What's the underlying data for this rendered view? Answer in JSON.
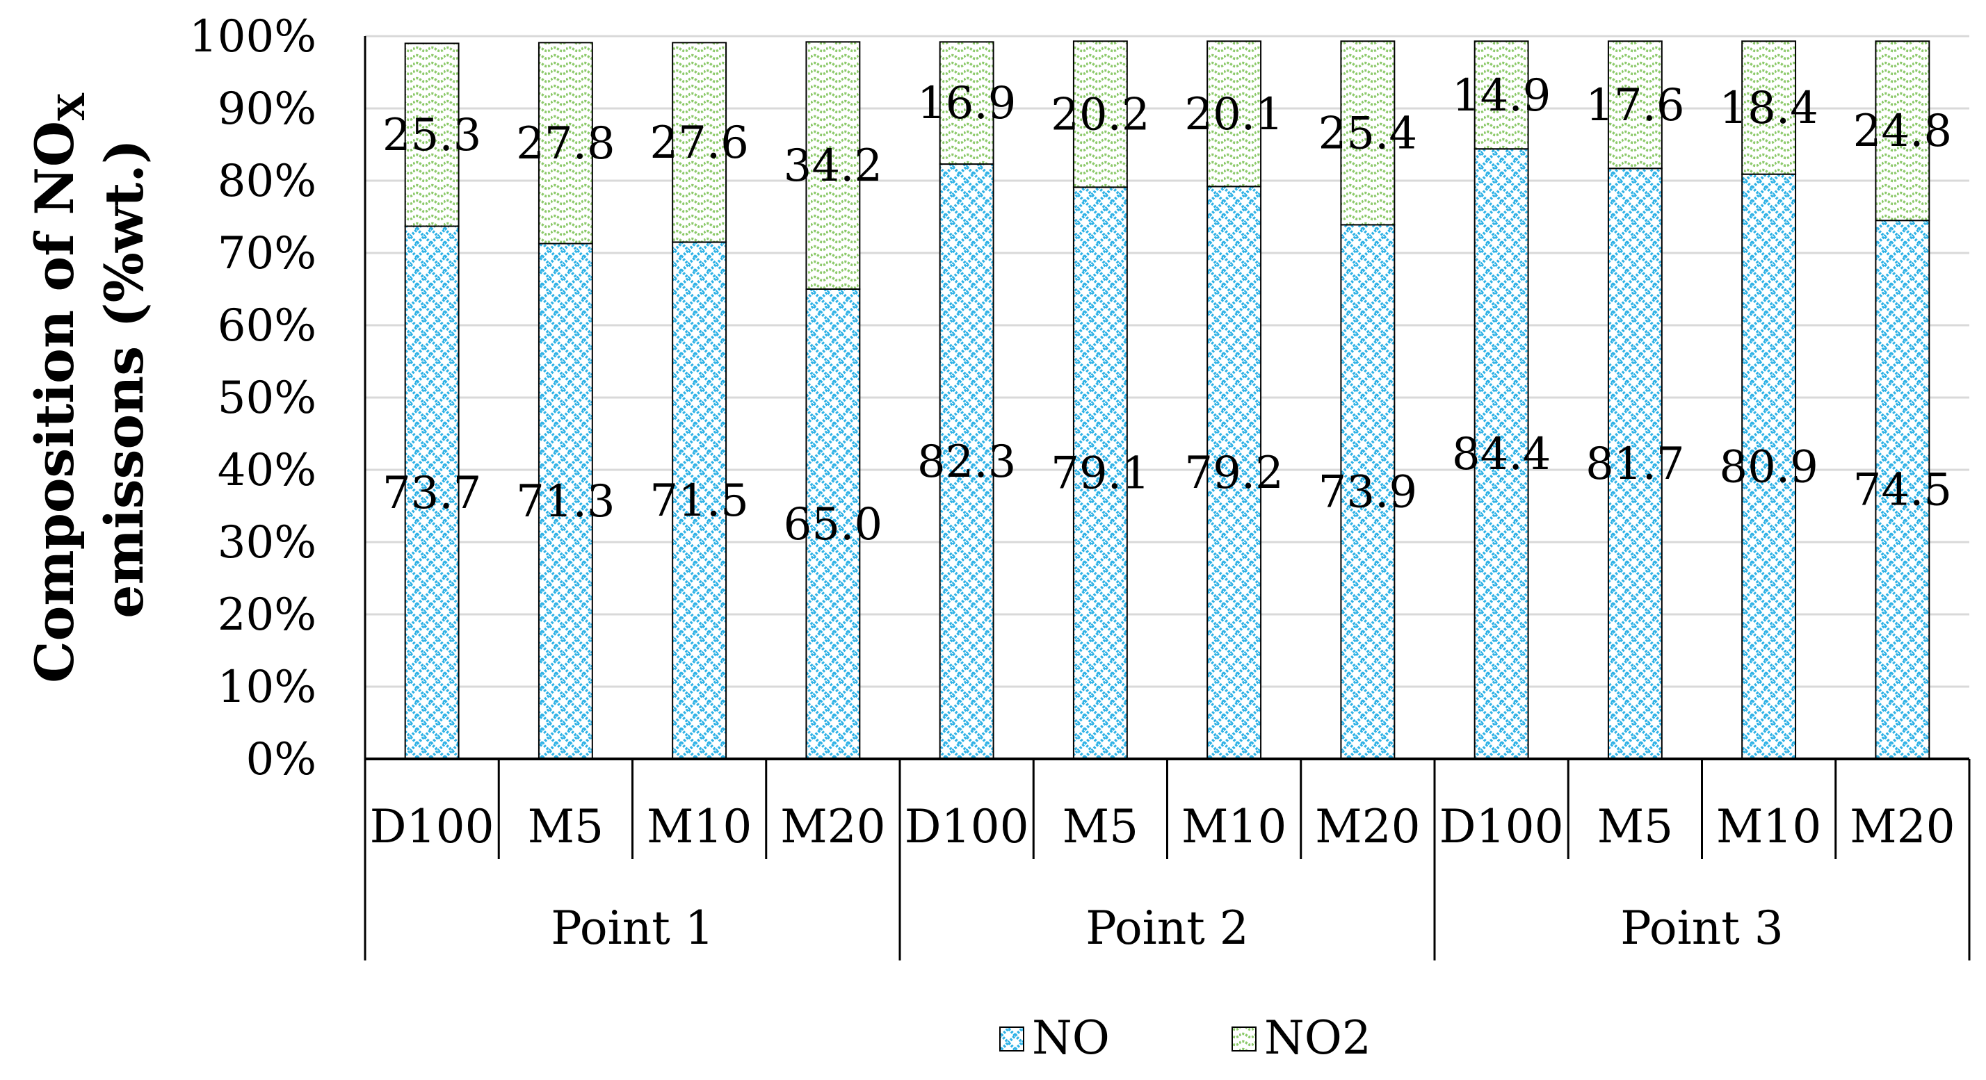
{
  "chart_data": {
    "type": "bar",
    "stacked": true,
    "percent_stacked": true,
    "ylabel": {
      "line1_prefix": "Composition of NO",
      "line1_subscript": "X",
      "line2": "emissons (%wt.)"
    },
    "ylim": [
      0,
      100
    ],
    "yticks": [
      "0%",
      "10%",
      "20%",
      "30%",
      "40%",
      "50%",
      "60%",
      "70%",
      "80%",
      "90%",
      "100%"
    ],
    "grid": true,
    "legend_position": "bottom",
    "groups": [
      {
        "name": "Point 1",
        "categories": [
          "D100",
          "M5",
          "M10",
          "M20"
        ]
      },
      {
        "name": "Point 2",
        "categories": [
          "D100",
          "M5",
          "M10",
          "M20"
        ]
      },
      {
        "name": "Point 3",
        "categories": [
          "D100",
          "M5",
          "M10",
          "M20"
        ]
      }
    ],
    "categories": [
      "D100",
      "M5",
      "M10",
      "M20",
      "D100",
      "M5",
      "M10",
      "M20",
      "D100",
      "M5",
      "M10",
      "M20"
    ],
    "series": [
      {
        "name": "NO",
        "color": "#2fb2e6",
        "values": [
          73.7,
          71.3,
          71.5,
          65.0,
          82.3,
          79.1,
          79.2,
          73.9,
          84.4,
          81.7,
          80.9,
          74.5
        ],
        "labels": [
          "73.7",
          "71.3",
          "71.5",
          "65.0",
          "82.3",
          "79.1",
          "79.2",
          "73.9",
          "84.4",
          "81.7",
          "80.9",
          "74.5"
        ]
      },
      {
        "name": "NO2",
        "color": "#8cc96a",
        "values": [
          25.3,
          27.8,
          27.6,
          34.2,
          16.9,
          20.2,
          20.1,
          25.4,
          14.9,
          17.6,
          18.4,
          24.8
        ],
        "labels": [
          "25.3",
          "27.8",
          "27.6",
          "34.2",
          "16.9",
          "20.2",
          "20.1",
          "25.4",
          "14.9",
          "17.6",
          "18.4",
          "24.8"
        ]
      }
    ]
  }
}
